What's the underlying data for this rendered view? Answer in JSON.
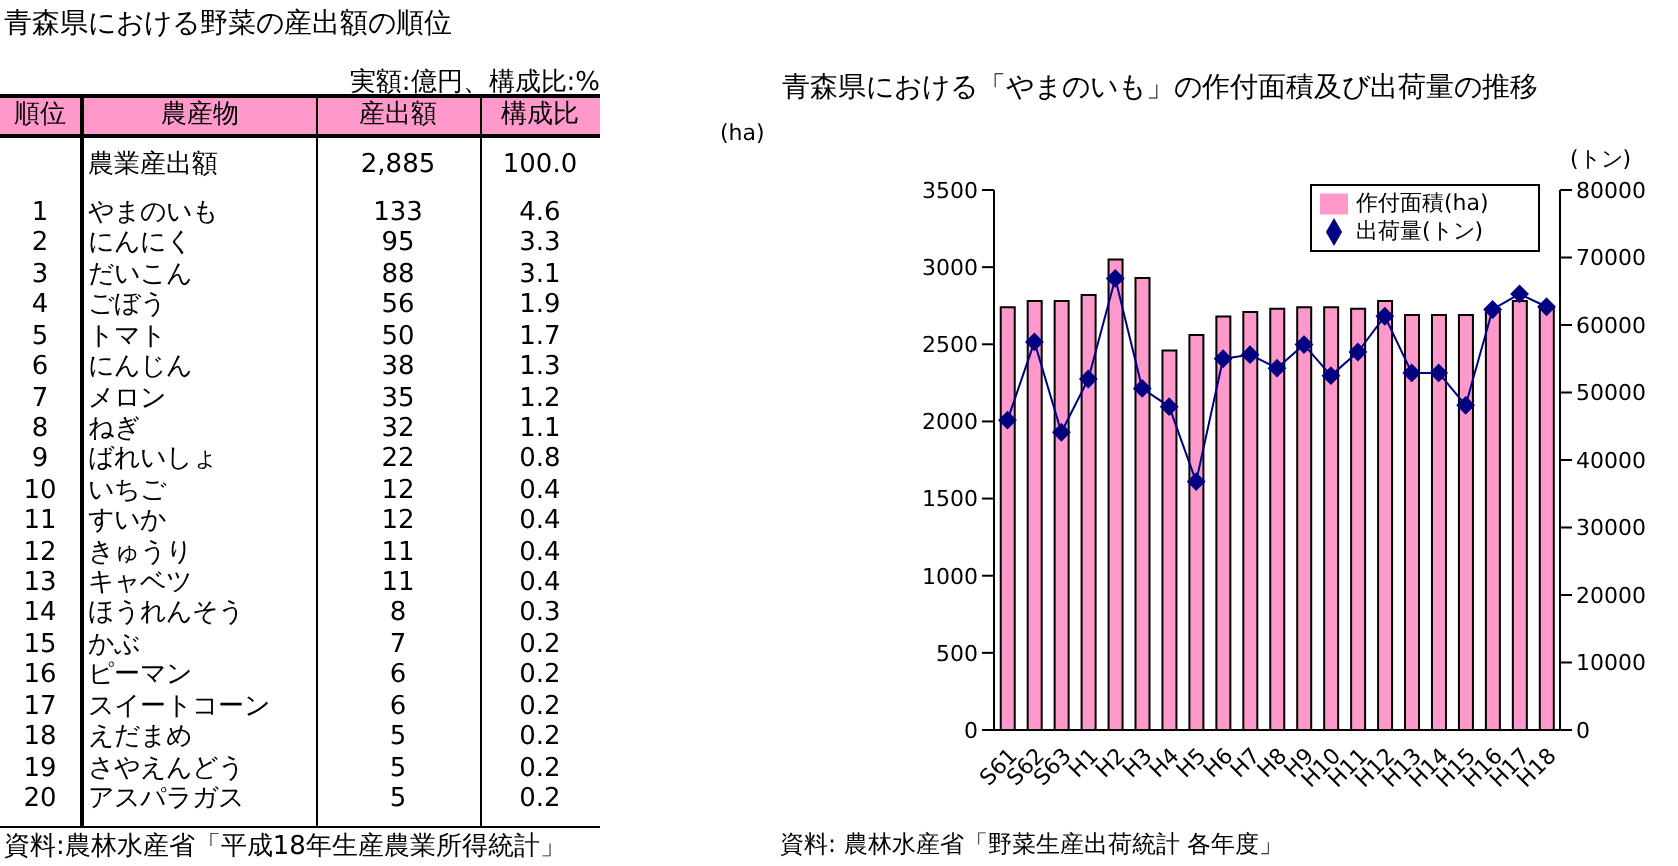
{
  "chart_data": [
    {
      "type": "other",
      "title": "青森県における野菜の産出額の順位",
      "xlabel": "農産物",
      "annotations": [
        "実額:億円、構成比:%",
        "資料:農林水産省「平成18年生産農業所得統計」"
      ],
      "categories": [
        "農業産出額",
        "やまのいも",
        "にんにく",
        "だいこん",
        "ごぼう",
        "トマト",
        "にんじん",
        "メロン",
        "ねぎ",
        "ばれいしょ",
        "いちご",
        "すいか",
        "きゅうり",
        "キャベツ",
        "ほうれんそう",
        "かぶ",
        "ピーマン",
        "スイートコーン",
        "えだまめ",
        "さやえんどう",
        "アスパラガス"
      ],
      "series": [
        {
          "name": "順位",
          "values": [
            null,
            1,
            2,
            3,
            4,
            5,
            6,
            7,
            8,
            9,
            10,
            11,
            12,
            13,
            14,
            15,
            16,
            17,
            18,
            19,
            20
          ],
          "value_labels": [
            null,
            "1",
            "2",
            "3",
            "4",
            "5",
            "6",
            "7",
            "8",
            "9",
            "10",
            "11",
            "12",
            "13",
            "14",
            "15",
            "16",
            "17",
            "18",
            "19",
            "20"
          ]
        },
        {
          "name": "産出額",
          "values": [
            2885,
            133,
            95,
            88,
            56,
            50,
            38,
            35,
            32,
            22,
            12,
            12,
            11,
            11,
            8,
            7,
            6,
            6,
            5,
            5,
            5
          ],
          "value_labels": [
            "2,885",
            "133",
            "95",
            "88",
            "56",
            "50",
            "38",
            "35",
            "32",
            "22",
            "12",
            "12",
            "11",
            "11",
            "8",
            "7",
            "6",
            "6",
            "5",
            "5",
            "5"
          ]
        },
        {
          "name": "構成比",
          "values": [
            100.0,
            4.6,
            3.3,
            3.1,
            1.9,
            1.7,
            1.3,
            1.2,
            1.1,
            0.8,
            0.4,
            0.4,
            0.4,
            0.4,
            0.3,
            0.2,
            0.2,
            0.2,
            0.2,
            0.2,
            0.2
          ],
          "value_labels": [
            "100.0",
            "4.6",
            "3.3",
            "3.1",
            "1.9",
            "1.7",
            "1.3",
            "1.2",
            "1.1",
            "0.8",
            "0.4",
            "0.4",
            "0.4",
            "0.4",
            "0.3",
            "0.2",
            "0.2",
            "0.2",
            "0.2",
            "0.2",
            "0.2"
          ]
        }
      ]
    },
    {
      "type": "bar",
      "title": "青森県における「やまのいも」の作付面積及び出荷量の推移",
      "ylabel": "(ha)",
      "y2label": "(トン)",
      "annotations": [
        "資料: 農林水産省「野菜生産出荷統計 各年度」"
      ],
      "categories": [
        "S61",
        "S62",
        "S63",
        "H1",
        "H2",
        "H3",
        "H4",
        "H5",
        "H6",
        "H7",
        "H8",
        "H9",
        "H10",
        "H11",
        "H12",
        "H13",
        "H14",
        "H15",
        "H16",
        "H17",
        "H18"
      ],
      "series": [
        {
          "name": "作付面積(ha)",
          "type": "bar",
          "color": "#ff99cc",
          "values": [
            2740,
            2780,
            2780,
            2820,
            3050,
            2930,
            2460,
            2560,
            2680,
            2710,
            2730,
            2740,
            2740,
            2730,
            2780,
            2690,
            2690,
            2690,
            2730,
            2780,
            2730
          ]
        },
        {
          "name": "出荷量(トン)",
          "type": "line",
          "axis": "y2",
          "color": "#000080",
          "marker": "diamond",
          "values": [
            45900,
            57500,
            44100,
            52000,
            66900,
            50600,
            47900,
            36800,
            55000,
            55600,
            53600,
            57100,
            52500,
            56000,
            61300,
            52900,
            52900,
            48100,
            62300,
            64600,
            62700
          ]
        }
      ],
      "ylim": [
        0,
        3500
      ],
      "yticks": [
        0,
        500,
        1000,
        1500,
        2000,
        2500,
        3000,
        3500
      ],
      "y2lim": [
        0,
        80000
      ],
      "y2ticks": [
        0,
        10000,
        20000,
        30000,
        40000,
        50000,
        60000,
        70000,
        80000
      ],
      "legend": "top right"
    }
  ]
}
